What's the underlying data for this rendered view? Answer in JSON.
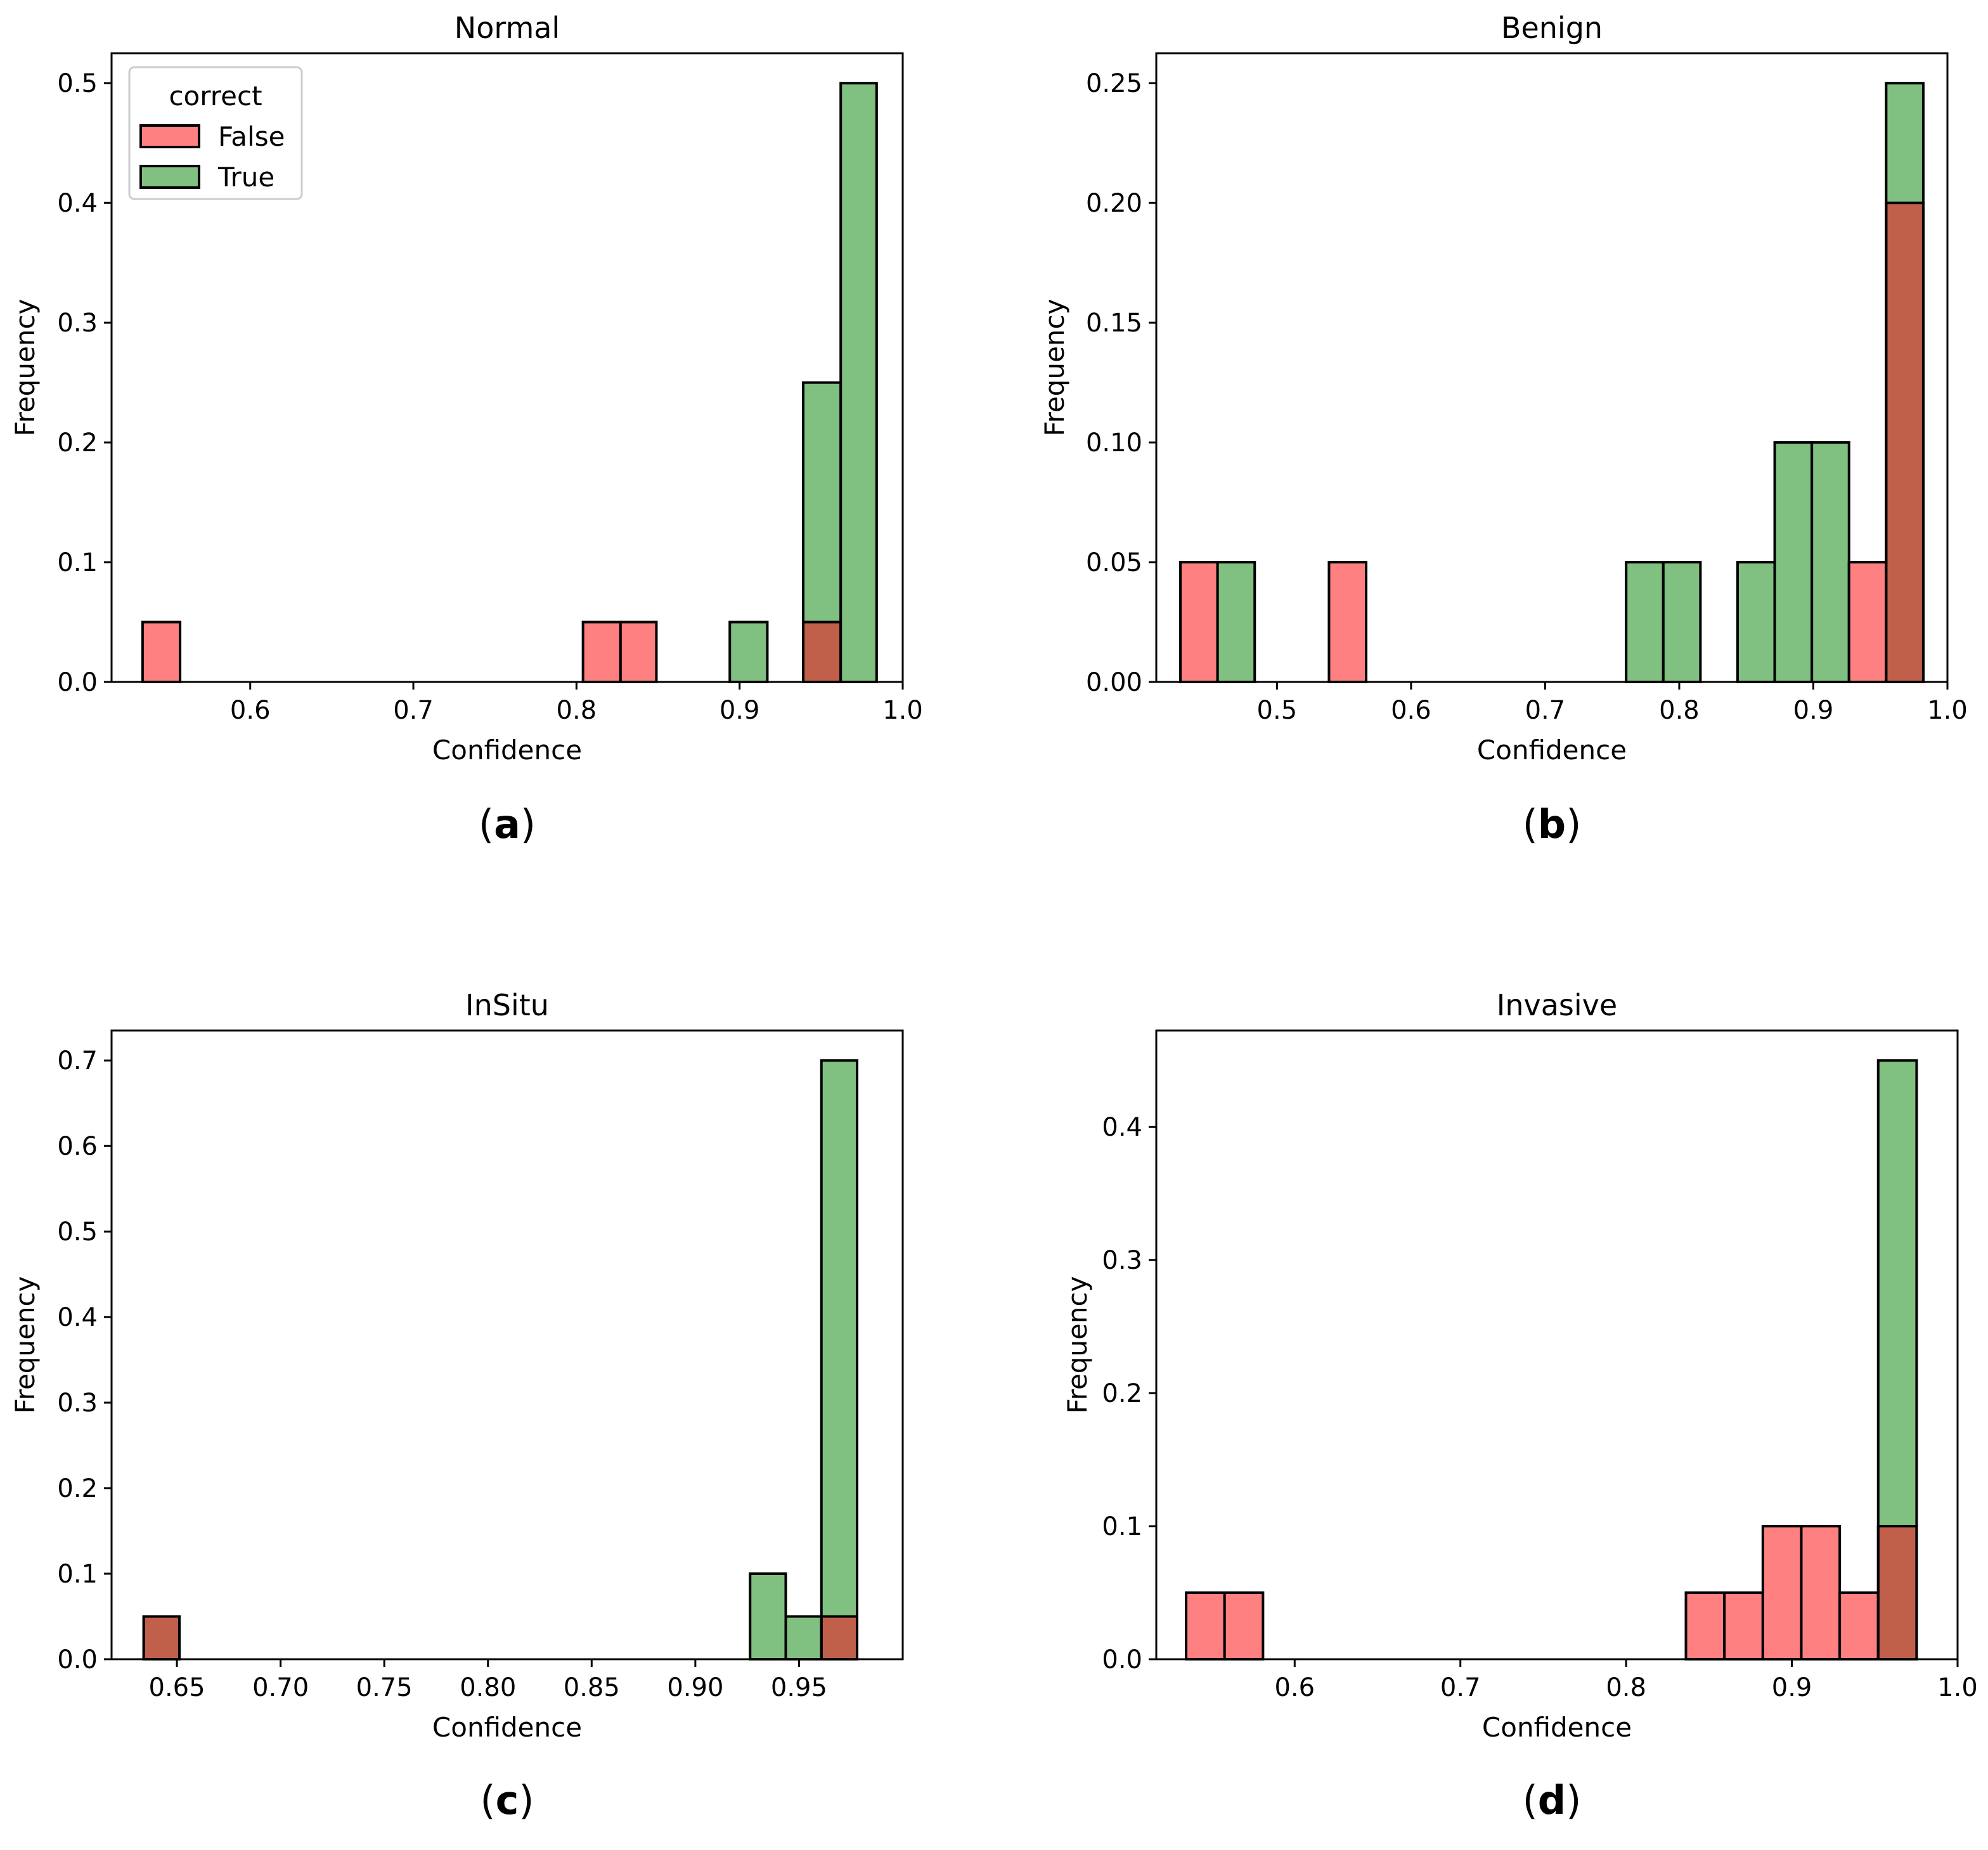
{
  "colors": {
    "false": "#ff8080",
    "true": "#80c080",
    "overlap": "#c0604a",
    "edge": "#000000"
  },
  "chart_data": [
    {
      "type": "bar",
      "title": "Normal",
      "xlabel": "Confidence",
      "ylabel": "Frequency",
      "caption": "a",
      "xlim": [
        0.515,
        1.0
      ],
      "ylim": [
        0,
        0.525
      ],
      "xticks": [
        0.6,
        0.7,
        0.8,
        0.9,
        1.0
      ],
      "xticklabels": [
        "0.6",
        "0.7",
        "0.8",
        "0.9",
        "1.0"
      ],
      "yticks": [
        0.0,
        0.1,
        0.2,
        0.3,
        0.4,
        0.5
      ],
      "yticklabels": [
        "0.0",
        "0.1",
        "0.2",
        "0.3",
        "0.4",
        "0.5"
      ],
      "bin_edges": [
        0.534,
        0.557,
        0.579,
        0.602,
        0.624,
        0.647,
        0.669,
        0.692,
        0.714,
        0.737,
        0.759,
        0.782,
        0.804,
        0.827,
        0.849,
        0.872,
        0.894,
        0.917,
        0.939,
        0.962,
        0.984
      ],
      "series": [
        {
          "name": "False",
          "values": [
            0.05,
            0,
            0,
            0,
            0,
            0,
            0,
            0,
            0,
            0,
            0,
            0,
            0.05,
            0.05,
            0,
            0,
            0,
            0,
            0.05,
            0
          ]
        },
        {
          "name": "True",
          "values": [
            0,
            0,
            0,
            0,
            0,
            0,
            0,
            0,
            0,
            0,
            0,
            0,
            0,
            0,
            0,
            0,
            0.05,
            0,
            0.25,
            0.5
          ]
        }
      ],
      "legend": {
        "title": "correct",
        "entries": [
          "False",
          "True"
        ],
        "position": "top-left"
      }
    },
    {
      "type": "bar",
      "title": "Benign",
      "xlabel": "Confidence",
      "ylabel": "Frequency",
      "caption": "b",
      "xlim": [
        0.41,
        1.0
      ],
      "ylim": [
        0,
        0.2625
      ],
      "xticks": [
        0.5,
        0.6,
        0.7,
        0.8,
        0.9,
        1.0
      ],
      "xticklabels": [
        "0.5",
        "0.6",
        "0.7",
        "0.8",
        "0.9",
        "1.0"
      ],
      "yticks": [
        0.0,
        0.05,
        0.1,
        0.15,
        0.2,
        0.25
      ],
      "yticklabels": [
        "0.00",
        "0.05",
        "0.10",
        "0.15",
        "0.20",
        "0.25"
      ],
      "bin_edges": [
        0.428,
        0.4557,
        0.4834,
        0.5111,
        0.5388,
        0.5665,
        0.5942,
        0.6219,
        0.6496,
        0.6773,
        0.705,
        0.7327,
        0.7604,
        0.7881,
        0.8158,
        0.8435,
        0.8712,
        0.8989,
        0.9266,
        0.9543,
        0.982
      ],
      "series": [
        {
          "name": "False",
          "values": [
            0.05,
            0,
            0,
            0,
            0.05,
            0,
            0,
            0,
            0,
            0,
            0,
            0,
            0,
            0,
            0,
            0,
            0,
            0,
            0.05,
            0.2
          ]
        },
        {
          "name": "True",
          "values": [
            0,
            0.05,
            0,
            0,
            0,
            0,
            0,
            0,
            0,
            0,
            0,
            0,
            0.05,
            0.05,
            0,
            0.05,
            0.1,
            0.1,
            0,
            0.25
          ]
        }
      ]
    },
    {
      "type": "bar",
      "title": "InSitu",
      "xlabel": "Confidence",
      "ylabel": "Frequency",
      "caption": "c",
      "xlim": [
        0.6185,
        1.0
      ],
      "ylim": [
        0,
        0.735
      ],
      "xticks": [
        0.65,
        0.7,
        0.75,
        0.8,
        0.85,
        0.9,
        0.95
      ],
      "xticklabels": [
        "0.65",
        "0.70",
        "0.75",
        "0.80",
        "0.85",
        "0.90",
        "0.95"
      ],
      "yticks": [
        0.0,
        0.1,
        0.2,
        0.3,
        0.4,
        0.5,
        0.6,
        0.7
      ],
      "yticklabels": [
        "0.0",
        "0.1",
        "0.2",
        "0.3",
        "0.4",
        "0.5",
        "0.6",
        "0.7"
      ],
      "bin_edges": [
        0.634,
        0.6512,
        0.6684,
        0.6856,
        0.7028,
        0.72,
        0.7372,
        0.7544,
        0.7716,
        0.7888,
        0.806,
        0.8232,
        0.8404,
        0.8576,
        0.8748,
        0.892,
        0.9092,
        0.9264,
        0.9436,
        0.9608,
        0.978
      ],
      "series": [
        {
          "name": "False",
          "values": [
            0.05,
            0,
            0,
            0,
            0,
            0,
            0,
            0,
            0,
            0,
            0,
            0,
            0,
            0,
            0,
            0,
            0,
            0,
            0,
            0.05
          ]
        },
        {
          "name": "True",
          "values": [
            0.05,
            0,
            0,
            0,
            0,
            0,
            0,
            0,
            0,
            0,
            0,
            0,
            0,
            0,
            0,
            0,
            0,
            0.1,
            0.05,
            0.7
          ]
        }
      ]
    },
    {
      "type": "bar",
      "title": "Invasive",
      "xlabel": "Confidence",
      "ylabel": "Frequency",
      "caption": "d",
      "xlim": [
        0.5165,
        1.0
      ],
      "ylim": [
        0,
        0.4725
      ],
      "xticks": [
        0.6,
        0.7,
        0.8,
        0.9,
        1.0
      ],
      "xticklabels": [
        "0.6",
        "0.7",
        "0.8",
        "0.9",
        "1.0"
      ],
      "yticks": [
        0.0,
        0.1,
        0.2,
        0.3,
        0.4
      ],
      "yticklabels": [
        "0.0",
        "0.1",
        "0.2",
        "0.3",
        "0.4"
      ],
      "bin_edges": [
        0.5345,
        0.5577,
        0.5809,
        0.6041,
        0.6273,
        0.6505,
        0.6737,
        0.6969,
        0.7201,
        0.7433,
        0.7665,
        0.7897,
        0.8129,
        0.8361,
        0.8593,
        0.8825,
        0.9057,
        0.9289,
        0.9521,
        0.9753,
        0.9985
      ],
      "series": [
        {
          "name": "False",
          "values": [
            0.05,
            0.05,
            0,
            0,
            0,
            0,
            0,
            0,
            0,
            0,
            0,
            0,
            0,
            0.05,
            0.05,
            0.1,
            0.1,
            0.05,
            0.1,
            0
          ]
        },
        {
          "name": "True",
          "values": [
            0,
            0,
            0,
            0,
            0,
            0,
            0,
            0,
            0,
            0,
            0,
            0,
            0,
            0,
            0,
            0,
            0,
            0,
            0.45,
            0
          ]
        }
      ]
    }
  ]
}
